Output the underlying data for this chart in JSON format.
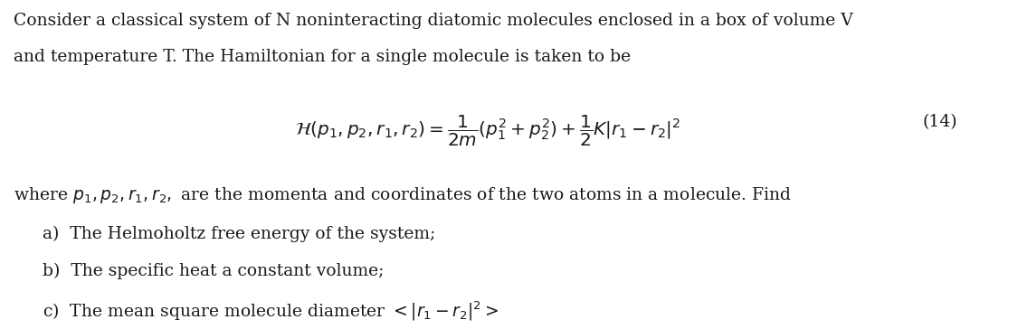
{
  "background_color": "#ffffff",
  "text_color": "#1a1a1a",
  "figsize": [
    11.35,
    3.64
  ],
  "dpi": 100,
  "equation_number": "(14)",
  "font_size_body": 13.5,
  "font_size_eq": 14.5,
  "font_size_eq_num": 13.5,
  "line1": "Consider a classical system of N noninteracting diatomic molecules enclosed in a box of volume V",
  "line2": "and temperature T. The Hamiltonian for a single molecule is taken to be",
  "equation": "$\\mathcal{H}(p_1, p_2, r_1, r_2) = \\dfrac{1}{2m}(p_1^2 + p_2^2) + \\dfrac{1}{2}K|r_1 - r_2|^2$",
  "line3": "where $p_1, p_2, r_1, r_2,$ are the momenta and coordinates of the two atoms in a molecule. Find",
  "item_a": "a)  The Helmoholtz free energy of the system;",
  "item_b": "b)  The specific heat a constant volume;",
  "item_c": "c)  The mean square molecule diameter $< |r_1 - r_2|^2 >$"
}
